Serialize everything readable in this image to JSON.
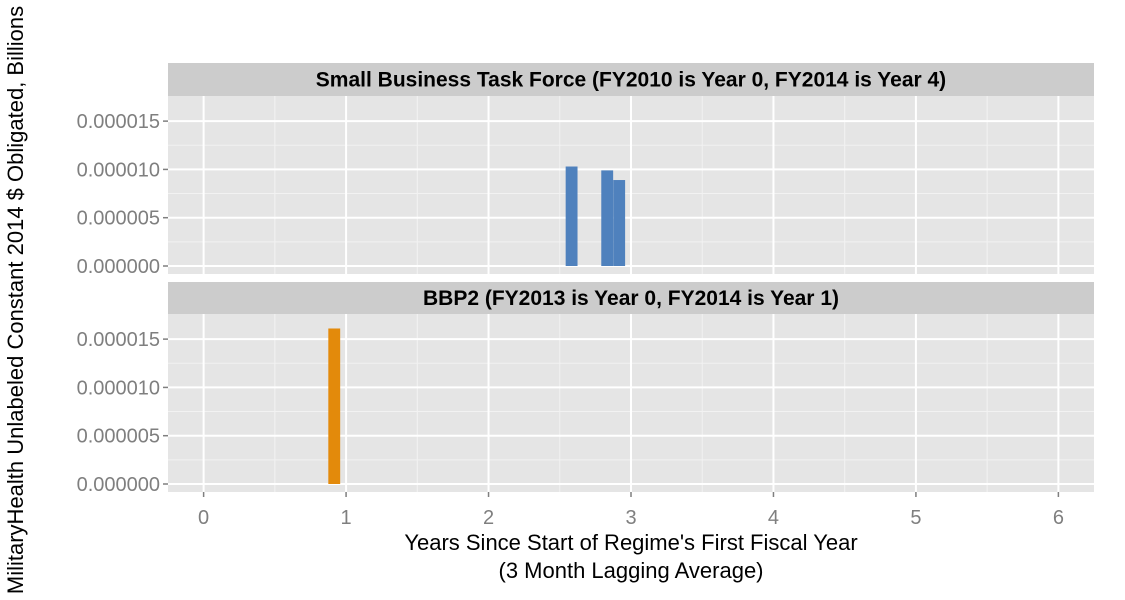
{
  "chart_data": {
    "type": "bar",
    "xlabel": "Years Since Start of Regime's First Fiscal Year",
    "xlabel_line2": "(3 Month Lagging Average)",
    "ylabel": "MilitaryHealth Unlabeled Constant 2014 $ Obligated, Billions",
    "xlim": [
      -0.25,
      6.25
    ],
    "x_ticks": [
      0,
      1,
      2,
      3,
      4,
      5,
      6
    ],
    "x_tick_labels": [
      "0",
      "1",
      "2",
      "3",
      "4",
      "5",
      "6"
    ],
    "ylim": [
      0,
      1.76e-05
    ],
    "y_ticks": [
      0,
      5e-06,
      1e-05,
      1.5e-05
    ],
    "y_tick_labels": [
      "0.000000",
      "0.000005",
      "0.000010",
      "0.000015"
    ],
    "grid": true,
    "bar_width": 0.0833,
    "panels": [
      {
        "title": "Small Business Task Force (FY2010 is Year 0, FY2014 is Year 4)",
        "color": "#4f81bd",
        "series": [
          {
            "x": [
              2.583,
              2.833,
              2.917
            ],
            "values": [
              1.03e-05,
              9.9e-06,
              8.9e-06
            ]
          }
        ]
      },
      {
        "title": "BBP2 (FY2013 is Year 0, FY2014 is Year 1)",
        "color": "#e38a0b",
        "series": [
          {
            "x": [
              0.917
            ],
            "values": [
              1.61e-05
            ]
          }
        ]
      }
    ]
  }
}
